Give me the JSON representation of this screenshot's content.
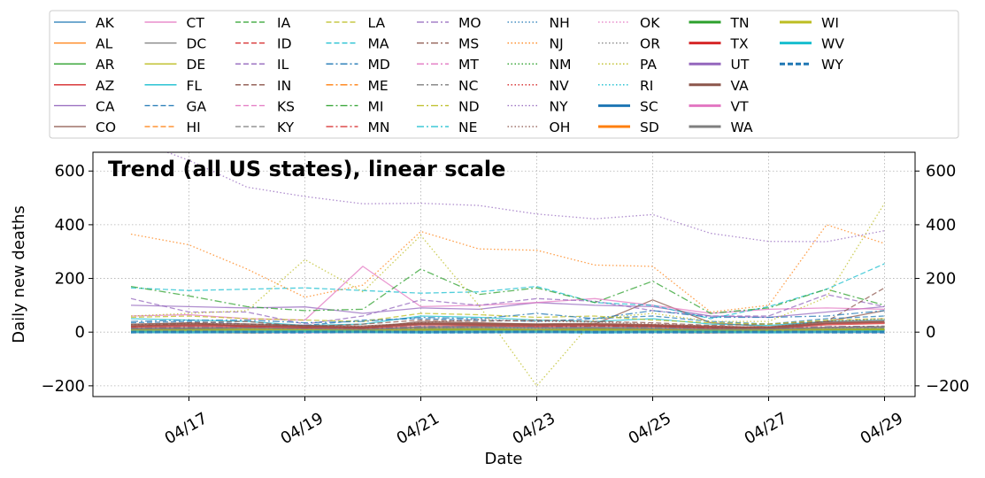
{
  "chart_data": {
    "type": "line",
    "title": "Trend (all US states), linear scale",
    "xlabel": "Date",
    "ylabel": "Daily new deaths",
    "x": [
      "04/16",
      "04/17",
      "04/18",
      "04/19",
      "04/20",
      "04/21",
      "04/22",
      "04/23",
      "04/24",
      "04/25",
      "04/26",
      "04/27",
      "04/28",
      "04/29"
    ],
    "x_ticks": [
      "04/17",
      "04/19",
      "04/21",
      "04/23",
      "04/25",
      "04/27",
      "04/29"
    ],
    "ylim": [
      -240,
      670
    ],
    "y_ticks": [
      -200,
      0,
      200,
      400,
      600
    ],
    "grid": true,
    "legend_position": "top",
    "series": [
      {
        "name": "AK",
        "color": "#1f77b4",
        "dash": "solid",
        "width": 1.3,
        "values": [
          0,
          0,
          0,
          0,
          0,
          0,
          0,
          0,
          0,
          0,
          0,
          0,
          0,
          0
        ]
      },
      {
        "name": "AL",
        "color": "#ff7f0e",
        "dash": "solid",
        "width": 1.3,
        "values": [
          8,
          10,
          12,
          10,
          6,
          12,
          14,
          10,
          12,
          14,
          6,
          4,
          10,
          12
        ]
      },
      {
        "name": "AR",
        "color": "#2ca02c",
        "dash": "solid",
        "width": 1.3,
        "values": [
          2,
          4,
          2,
          3,
          1,
          3,
          4,
          2,
          4,
          3,
          2,
          1,
          4,
          3
        ]
      },
      {
        "name": "AZ",
        "color": "#d62728",
        "dash": "solid",
        "width": 1.3,
        "values": [
          12,
          14,
          16,
          15,
          10,
          20,
          22,
          18,
          16,
          20,
          12,
          10,
          18,
          20
        ]
      },
      {
        "name": "CA",
        "color": "#9467bd",
        "dash": "solid",
        "width": 1.3,
        "values": [
          100,
          95,
          90,
          94,
          70,
          90,
          85,
          110,
          100,
          95,
          60,
          55,
          75,
          95
        ]
      },
      {
        "name": "CO",
        "color": "#8c564b",
        "dash": "solid",
        "width": 1.3,
        "values": [
          30,
          35,
          20,
          25,
          15,
          40,
          35,
          30,
          30,
          120,
          35,
          20,
          40,
          80
        ]
      },
      {
        "name": "CT",
        "color": "#e377c2",
        "dash": "solid",
        "width": 1.3,
        "values": [
          60,
          65,
          50,
          45,
          245,
          95,
          100,
          110,
          125,
          100,
          70,
          85,
          90,
          85
        ]
      },
      {
        "name": "DC",
        "color": "#7f7f7f",
        "dash": "solid",
        "width": 1.3,
        "values": [
          6,
          8,
          6,
          7,
          5,
          8,
          9,
          7,
          8,
          8,
          5,
          4,
          7,
          8
        ]
      },
      {
        "name": "DE",
        "color": "#bcbd22",
        "dash": "solid",
        "width": 1.3,
        "values": [
          6,
          7,
          5,
          8,
          4,
          8,
          9,
          7,
          6,
          7,
          5,
          4,
          7,
          8
        ]
      },
      {
        "name": "FL",
        "color": "#17becf",
        "dash": "solid",
        "width": 1.3,
        "values": [
          50,
          45,
          40,
          25,
          30,
          60,
          55,
          45,
          40,
          50,
          30,
          25,
          40,
          45
        ]
      },
      {
        "name": "GA",
        "color": "#1f77b4",
        "dash": "dashed",
        "width": 1.3,
        "values": [
          35,
          40,
          30,
          25,
          45,
          50,
          45,
          40,
          50,
          60,
          40,
          30,
          50,
          60
        ]
      },
      {
        "name": "HI",
        "color": "#ff7f0e",
        "dash": "dashed",
        "width": 1.3,
        "values": [
          0,
          1,
          0,
          0,
          1,
          0,
          0,
          1,
          0,
          0,
          0,
          1,
          0,
          0
        ]
      },
      {
        "name": "IA",
        "color": "#2ca02c",
        "dash": "dashed",
        "width": 1.3,
        "values": [
          5,
          8,
          6,
          7,
          5,
          10,
          8,
          10,
          12,
          10,
          8,
          6,
          12,
          14
        ]
      },
      {
        "name": "ID",
        "color": "#d62728",
        "dash": "dashed",
        "width": 1.3,
        "values": [
          2,
          3,
          2,
          1,
          2,
          3,
          2,
          2,
          3,
          2,
          1,
          2,
          3,
          2
        ]
      },
      {
        "name": "IL",
        "color": "#9467bd",
        "dash": "dashed",
        "width": 1.3,
        "values": [
          125,
          75,
          75,
          30,
          60,
          120,
          100,
          125,
          115,
          80,
          60,
          60,
          140,
          95
        ]
      },
      {
        "name": "IN",
        "color": "#8c564b",
        "dash": "dashed",
        "width": 1.3,
        "values": [
          20,
          35,
          40,
          20,
          30,
          45,
          40,
          45,
          40,
          35,
          25,
          30,
          40,
          165
        ]
      },
      {
        "name": "KS",
        "color": "#e377c2",
        "dash": "dashed",
        "width": 1.3,
        "values": [
          4,
          6,
          5,
          3,
          4,
          6,
          5,
          6,
          5,
          4,
          3,
          4,
          6,
          5
        ]
      },
      {
        "name": "KY",
        "color": "#7f7f7f",
        "dash": "dashed",
        "width": 1.3,
        "values": [
          8,
          10,
          6,
          7,
          5,
          10,
          9,
          8,
          10,
          8,
          6,
          5,
          12,
          10
        ]
      },
      {
        "name": "LA",
        "color": "#bcbd22",
        "dash": "dashed",
        "width": 1.3,
        "values": [
          55,
          60,
          50,
          45,
          40,
          70,
          65,
          55,
          60,
          45,
          35,
          30,
          45,
          50
        ]
      },
      {
        "name": "MA",
        "color": "#17becf",
        "dash": "dashed",
        "width": 1.3,
        "values": [
          165,
          155,
          160,
          165,
          155,
          145,
          150,
          170,
          110,
          100,
          50,
          95,
          160,
          255
        ]
      },
      {
        "name": "MD",
        "color": "#1f77b4",
        "dash": "dashdot",
        "width": 1.3,
        "values": [
          40,
          45,
          45,
          35,
          40,
          55,
          50,
          70,
          50,
          80,
          55,
          55,
          60,
          80
        ]
      },
      {
        "name": "ME",
        "color": "#ff7f0e",
        "dash": "dashdot",
        "width": 1.3,
        "values": [
          1,
          2,
          1,
          1,
          2,
          1,
          2,
          1,
          1,
          2,
          1,
          1,
          2,
          1
        ]
      },
      {
        "name": "MI",
        "color": "#2ca02c",
        "dash": "dashdot",
        "width": 1.3,
        "values": [
          170,
          135,
          95,
          80,
          85,
          235,
          140,
          165,
          110,
          190,
          70,
          90,
          160,
          100
        ]
      },
      {
        "name": "MN",
        "color": "#d62728",
        "dash": "dashdot",
        "width": 1.3,
        "values": [
          10,
          15,
          12,
          14,
          10,
          18,
          20,
          18,
          22,
          24,
          16,
          14,
          20,
          22
        ]
      },
      {
        "name": "MO",
        "color": "#9467bd",
        "dash": "dashdot",
        "width": 1.3,
        "values": [
          15,
          20,
          18,
          14,
          12,
          22,
          20,
          18,
          16,
          18,
          14,
          12,
          20,
          22
        ]
      },
      {
        "name": "MS",
        "color": "#8c564b",
        "dash": "dashdot",
        "width": 1.3,
        "values": [
          10,
          12,
          10,
          8,
          10,
          14,
          12,
          10,
          12,
          10,
          8,
          10,
          12,
          10
        ]
      },
      {
        "name": "MT",
        "color": "#e377c2",
        "dash": "dashdot",
        "width": 1.3,
        "values": [
          0,
          1,
          0,
          1,
          0,
          0,
          1,
          0,
          0,
          1,
          0,
          0,
          1,
          0
        ]
      },
      {
        "name": "NC",
        "color": "#7f7f7f",
        "dash": "dashdot",
        "width": 1.3,
        "values": [
          15,
          18,
          12,
          10,
          15,
          20,
          18,
          20,
          22,
          18,
          12,
          10,
          20,
          22
        ]
      },
      {
        "name": "ND",
        "color": "#bcbd22",
        "dash": "dashdot",
        "width": 1.3,
        "values": [
          1,
          1,
          2,
          1,
          1,
          2,
          1,
          2,
          1,
          1,
          2,
          1,
          1,
          2
        ]
      },
      {
        "name": "NE",
        "color": "#17becf",
        "dash": "dashdot",
        "width": 1.3,
        "values": [
          3,
          4,
          3,
          2,
          3,
          4,
          5,
          4,
          3,
          4,
          3,
          2,
          4,
          5
        ]
      },
      {
        "name": "NH",
        "color": "#1f77b4",
        "dash": "dotted",
        "width": 1.3,
        "values": [
          3,
          2,
          4,
          3,
          2,
          4,
          3,
          4,
          3,
          2,
          3,
          2,
          4,
          3
        ]
      },
      {
        "name": "NJ",
        "color": "#ff7f0e",
        "dash": "dotted",
        "width": 1.3,
        "values": [
          365,
          325,
          235,
          130,
          175,
          375,
          310,
          305,
          250,
          245,
          75,
          100,
          400,
          330
        ]
      },
      {
        "name": "NM",
        "color": "#2ca02c",
        "dash": "dotted",
        "width": 1.3,
        "values": [
          3,
          4,
          3,
          2,
          3,
          4,
          3,
          5,
          4,
          3,
          2,
          3,
          4,
          5
        ]
      },
      {
        "name": "NV",
        "color": "#d62728",
        "dash": "dotted",
        "width": 1.3,
        "values": [
          8,
          10,
          8,
          6,
          5,
          10,
          12,
          8,
          10,
          8,
          6,
          5,
          10,
          12
        ]
      },
      {
        "name": "NY",
        "color": "#9467bd",
        "dash": "dotted",
        "width": 1.3,
        "values": [
          720,
          640,
          540,
          505,
          478,
          480,
          472,
          440,
          422,
          438,
          368,
          338,
          337,
          378
        ]
      },
      {
        "name": "OH",
        "color": "#8c564b",
        "dash": "dotted",
        "width": 1.3,
        "values": [
          28,
          32,
          30,
          25,
          22,
          35,
          48,
          40,
          38,
          30,
          22,
          18,
          40,
          50
        ]
      },
      {
        "name": "OK",
        "color": "#e377c2",
        "dash": "dotted",
        "width": 1.3,
        "values": [
          4,
          5,
          4,
          3,
          4,
          5,
          4,
          6,
          5,
          4,
          3,
          2,
          5,
          4
        ]
      },
      {
        "name": "OR",
        "color": "#7f7f7f",
        "dash": "dotted",
        "width": 1.3,
        "values": [
          2,
          3,
          2,
          3,
          2,
          4,
          3,
          2,
          3,
          2,
          1,
          2,
          3,
          4
        ]
      },
      {
        "name": "PA",
        "color": "#bcbd22",
        "dash": "dotted",
        "width": 1.3,
        "values": [
          60,
          70,
          80,
          270,
          150,
          360,
          100,
          -200,
          50,
          70,
          40,
          40,
          130,
          480
        ]
      },
      {
        "name": "RI",
        "color": "#17becf",
        "dash": "dotted",
        "width": 1.3,
        "values": [
          10,
          12,
          15,
          14,
          12,
          15,
          18,
          14,
          16,
          15,
          10,
          12,
          15,
          18
        ]
      },
      {
        "name": "SC",
        "color": "#1f77b4",
        "dash": "solid",
        "width": 3,
        "values": [
          6,
          8,
          7,
          6,
          5,
          8,
          9,
          7,
          8,
          6,
          5,
          4,
          8,
          9
        ]
      },
      {
        "name": "SD",
        "color": "#ff7f0e",
        "dash": "solid",
        "width": 3,
        "values": [
          1,
          1,
          0,
          1,
          1,
          2,
          1,
          1,
          2,
          1,
          0,
          1,
          1,
          2
        ]
      },
      {
        "name": "TN",
        "color": "#2ca02c",
        "dash": "solid",
        "width": 3,
        "values": [
          5,
          6,
          4,
          5,
          3,
          7,
          6,
          5,
          6,
          5,
          4,
          3,
          6,
          7
        ]
      },
      {
        "name": "TX",
        "color": "#d62728",
        "dash": "solid",
        "width": 3,
        "values": [
          20,
          25,
          22,
          18,
          16,
          30,
          28,
          25,
          26,
          24,
          18,
          15,
          30,
          35
        ]
      },
      {
        "name": "UT",
        "color": "#9467bd",
        "dash": "solid",
        "width": 3,
        "values": [
          2,
          3,
          2,
          1,
          2,
          3,
          2,
          3,
          2,
          3,
          1,
          2,
          3,
          2
        ]
      },
      {
        "name": "VA",
        "color": "#8c564b",
        "dash": "solid",
        "width": 3,
        "values": [
          25,
          30,
          28,
          22,
          20,
          32,
          30,
          28,
          30,
          25,
          20,
          15,
          35,
          40
        ]
      },
      {
        "name": "VT",
        "color": "#e377c2",
        "dash": "solid",
        "width": 3,
        "values": [
          2,
          1,
          2,
          1,
          2,
          1,
          2,
          1,
          1,
          2,
          1,
          1,
          2,
          1
        ]
      },
      {
        "name": "WA",
        "color": "#7f7f7f",
        "dash": "solid",
        "width": 3,
        "values": [
          12,
          15,
          14,
          10,
          8,
          16,
          18,
          14,
          16,
          12,
          8,
          10,
          15,
          18
        ]
      },
      {
        "name": "WI",
        "color": "#bcbd22",
        "dash": "solid",
        "width": 3,
        "values": [
          5,
          6,
          8,
          6,
          4,
          8,
          9,
          7,
          8,
          6,
          4,
          5,
          8,
          9
        ]
      },
      {
        "name": "WV",
        "color": "#17becf",
        "dash": "solid",
        "width": 3,
        "values": [
          1,
          0,
          1,
          2,
          1,
          0,
          1,
          1,
          0,
          1,
          1,
          0,
          1,
          2
        ]
      },
      {
        "name": "WY",
        "color": "#1f77b4",
        "dash": "dashed",
        "width": 3,
        "values": [
          0,
          1,
          0,
          0,
          1,
          0,
          0,
          1,
          0,
          0,
          0,
          1,
          0,
          0
        ]
      }
    ]
  }
}
